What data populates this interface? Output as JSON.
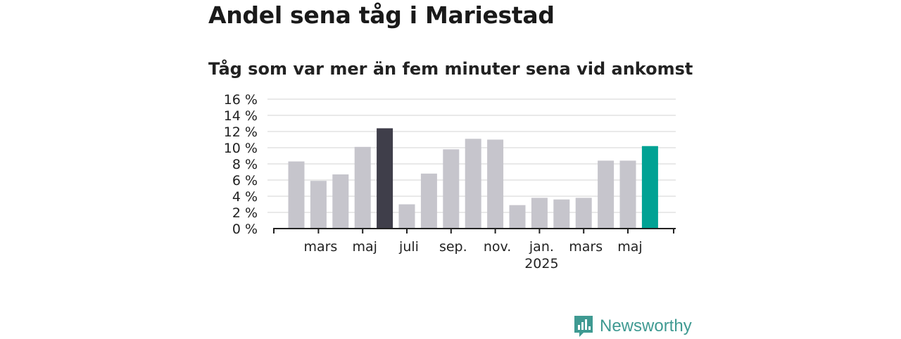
{
  "title": "Andel sena tåg i Mariestad",
  "subtitle": "Tåg som var mer än fem minuter sena vid ankomst",
  "brand": {
    "name": "Newsworthy",
    "color": "#3f9a92"
  },
  "colors": {
    "default_bar": "#c6c5cc",
    "highlight_bar": "#3f3e4a",
    "latest_bar": "#00a294",
    "grid": "#dcdcdc",
    "axis": "#222222"
  },
  "chart_data": {
    "type": "bar",
    "title": "Andel sena tåg i Mariestad",
    "subtitle": "Tåg som var mer än fem minuter sena vid ankomst",
    "xlabel": "",
    "ylabel": "",
    "ylim": [
      0,
      16
    ],
    "y_ticks": [
      0,
      2,
      4,
      6,
      8,
      10,
      12,
      14,
      16
    ],
    "y_tick_labels": [
      "0 %",
      "2 %",
      "4 %",
      "6 %",
      "8 %",
      "10 %",
      "12 %",
      "14 %",
      "16 %"
    ],
    "grid": true,
    "legend": "none",
    "categories": [
      "2024-02",
      "2024-03",
      "2024-04",
      "2024-05",
      "2024-06",
      "2024-07",
      "2024-08",
      "2024-09",
      "2024-10",
      "2024-11",
      "2024-12",
      "2025-01",
      "2025-02",
      "2025-03",
      "2025-04",
      "2025-05",
      "2025-06"
    ],
    "values": [
      8.3,
      5.9,
      6.7,
      10.1,
      12.4,
      3.0,
      6.8,
      9.8,
      11.1,
      11.0,
      2.9,
      3.8,
      3.6,
      3.8,
      8.4,
      8.4,
      10.2
    ],
    "bar_colors": [
      "default",
      "default",
      "default",
      "default",
      "highlight",
      "default",
      "default",
      "default",
      "default",
      "default",
      "default",
      "default",
      "default",
      "default",
      "default",
      "default",
      "latest"
    ],
    "x_tick_labels": [
      {
        "label": "mars",
        "category_index": 1,
        "sub": ""
      },
      {
        "label": "maj",
        "category_index": 3,
        "sub": ""
      },
      {
        "label": "juli",
        "category_index": 5,
        "sub": ""
      },
      {
        "label": "sep.",
        "category_index": 7,
        "sub": ""
      },
      {
        "label": "nov.",
        "category_index": 9,
        "sub": ""
      },
      {
        "label": "jan.",
        "category_index": 11,
        "sub": "2025"
      },
      {
        "label": "mars",
        "category_index": 13,
        "sub": ""
      },
      {
        "label": "maj",
        "category_index": 15,
        "sub": ""
      }
    ]
  }
}
